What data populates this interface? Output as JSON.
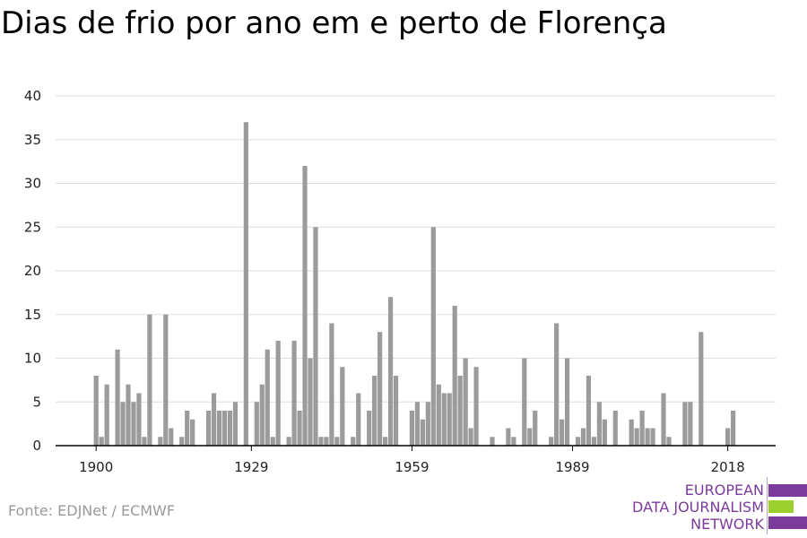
{
  "title": "Dias de frio por ano em e perto de Florença",
  "source": "Fonte: EDJNet / ECMWF",
  "logo": {
    "line1": "EUROPEAN",
    "line2": "DATA JOURNALISM",
    "line3": "NETWORK",
    "color_purple": "#7b3b9c",
    "color_green": "#9bcf2c"
  },
  "colors": {
    "bar": "#9b9b9b",
    "grid": "#dddddd",
    "axis": "#000000",
    "tick_label": "#222222"
  },
  "chart_data": {
    "type": "bar",
    "title": "Dias de frio por ano em e perto de Florença",
    "xlabel": "",
    "ylabel": "",
    "ylim": [
      0,
      40
    ],
    "xlim": [
      1900,
      2021
    ],
    "grid": true,
    "y_ticks": [
      0,
      5,
      10,
      15,
      20,
      25,
      30,
      35,
      40
    ],
    "x_ticks": [
      1900,
      1929,
      1959,
      1989,
      2018
    ],
    "x": [
      1900,
      1901,
      1902,
      1903,
      1904,
      1905,
      1906,
      1907,
      1908,
      1909,
      1910,
      1911,
      1912,
      1913,
      1914,
      1915,
      1916,
      1917,
      1918,
      1919,
      1920,
      1921,
      1922,
      1923,
      1924,
      1925,
      1926,
      1927,
      1928,
      1929,
      1930,
      1931,
      1932,
      1933,
      1934,
      1935,
      1936,
      1937,
      1938,
      1939,
      1940,
      1941,
      1942,
      1943,
      1944,
      1945,
      1946,
      1947,
      1948,
      1949,
      1950,
      1951,
      1952,
      1953,
      1954,
      1955,
      1956,
      1957,
      1958,
      1959,
      1960,
      1961,
      1962,
      1963,
      1964,
      1965,
      1966,
      1967,
      1968,
      1969,
      1970,
      1971,
      1972,
      1973,
      1974,
      1975,
      1976,
      1977,
      1978,
      1979,
      1980,
      1981,
      1982,
      1983,
      1984,
      1985,
      1986,
      1987,
      1988,
      1989,
      1990,
      1991,
      1992,
      1993,
      1994,
      1995,
      1996,
      1997,
      1998,
      1999,
      2000,
      2001,
      2002,
      2003,
      2004,
      2005,
      2006,
      2007,
      2008,
      2009,
      2010,
      2011,
      2012,
      2013,
      2014,
      2015,
      2016,
      2017,
      2018,
      2019
    ],
    "values": [
      8,
      1,
      7,
      0,
      11,
      5,
      7,
      5,
      6,
      1,
      15,
      0,
      1,
      15,
      2,
      0,
      1,
      4,
      3,
      0,
      0,
      4,
      6,
      4,
      4,
      4,
      5,
      0,
      37,
      0,
      5,
      7,
      11,
      1,
      12,
      0,
      1,
      12,
      4,
      32,
      10,
      25,
      1,
      1,
      14,
      1,
      9,
      0,
      1,
      6,
      0,
      4,
      8,
      13,
      1,
      17,
      8,
      0,
      0,
      4,
      5,
      3,
      5,
      25,
      7,
      6,
      6,
      16,
      8,
      10,
      2,
      9,
      0,
      0,
      1,
      0,
      0,
      2,
      1,
      0,
      10,
      2,
      4,
      0,
      0,
      1,
      14,
      3,
      10,
      0,
      1,
      2,
      8,
      1,
      5,
      3,
      0,
      4,
      0,
      0,
      3,
      2,
      4,
      2,
      2,
      0,
      6,
      1,
      0,
      0,
      5,
      5,
      0,
      13,
      0,
      0,
      0,
      0,
      2,
      4
    ]
  }
}
